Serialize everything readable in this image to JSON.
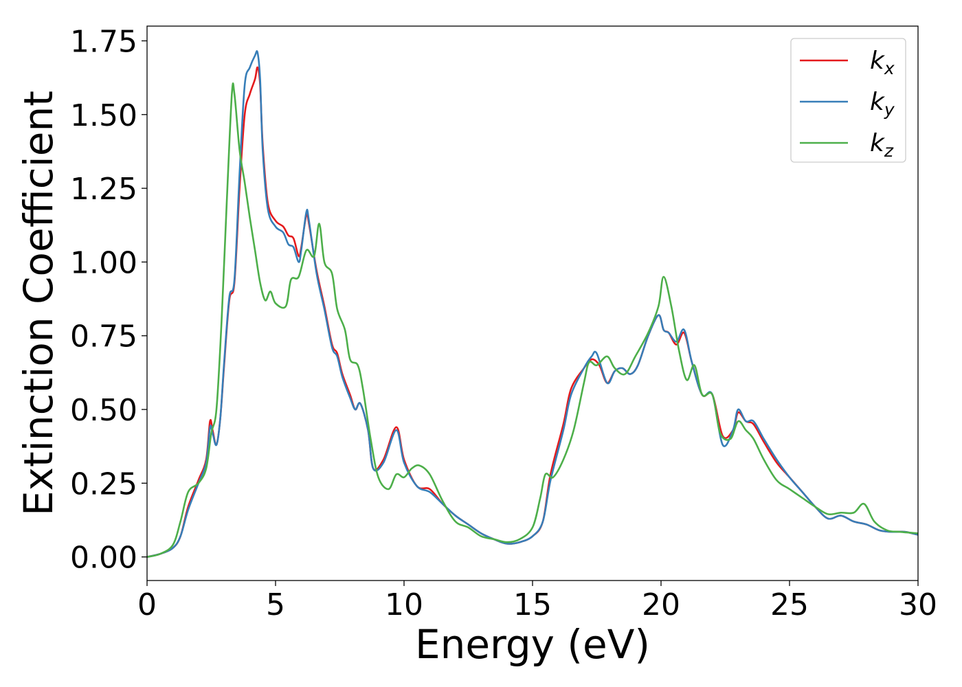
{
  "chart_data": {
    "type": "line",
    "xlabel": "Energy (eV)",
    "ylabel": "Extinction Coefficient",
    "xlim": [
      0,
      30
    ],
    "ylim": [
      -0.08,
      1.8
    ],
    "x_ticks": [
      "0",
      "5",
      "10",
      "15",
      "20",
      "25",
      "30"
    ],
    "y_ticks": [
      "0.00",
      "0.25",
      "0.50",
      "0.75",
      "1.00",
      "1.25",
      "1.50",
      "1.75"
    ],
    "grid": false,
    "legend_position": "top-right",
    "series": [
      {
        "name": "k",
        "subscript": "x",
        "color": "#e41a1c",
        "points": [
          [
            0,
            0.0
          ],
          [
            0.5,
            0.01
          ],
          [
            1.0,
            0.03
          ],
          [
            1.3,
            0.07
          ],
          [
            1.6,
            0.17
          ],
          [
            2.0,
            0.26
          ],
          [
            2.3,
            0.33
          ],
          [
            2.45,
            0.46
          ],
          [
            2.55,
            0.43
          ],
          [
            2.7,
            0.38
          ],
          [
            2.85,
            0.47
          ],
          [
            3.0,
            0.65
          ],
          [
            3.2,
            0.87
          ],
          [
            3.4,
            0.93
          ],
          [
            3.6,
            1.25
          ],
          [
            3.8,
            1.5
          ],
          [
            4.0,
            1.57
          ],
          [
            4.2,
            1.62
          ],
          [
            4.3,
            1.66
          ],
          [
            4.4,
            1.6
          ],
          [
            4.5,
            1.4
          ],
          [
            4.7,
            1.2
          ],
          [
            5.0,
            1.14
          ],
          [
            5.3,
            1.12
          ],
          [
            5.5,
            1.09
          ],
          [
            5.7,
            1.08
          ],
          [
            5.9,
            1.02
          ],
          [
            6.0,
            1.05
          ],
          [
            6.2,
            1.16
          ],
          [
            6.3,
            1.13
          ],
          [
            6.6,
            0.97
          ],
          [
            6.9,
            0.85
          ],
          [
            7.2,
            0.72
          ],
          [
            7.4,
            0.69
          ],
          [
            7.6,
            0.62
          ],
          [
            7.9,
            0.55
          ],
          [
            8.1,
            0.5
          ],
          [
            8.3,
            0.52
          ],
          [
            8.6,
            0.43
          ],
          [
            8.8,
            0.3
          ],
          [
            9.2,
            0.33
          ],
          [
            9.7,
            0.44
          ],
          [
            10.0,
            0.33
          ],
          [
            10.5,
            0.24
          ],
          [
            11.0,
            0.23
          ],
          [
            11.5,
            0.18
          ],
          [
            12.0,
            0.14
          ],
          [
            12.5,
            0.11
          ],
          [
            13.0,
            0.08
          ],
          [
            13.5,
            0.06
          ],
          [
            14.0,
            0.045
          ],
          [
            14.5,
            0.05
          ],
          [
            15.0,
            0.07
          ],
          [
            15.4,
            0.12
          ],
          [
            15.7,
            0.28
          ],
          [
            16.2,
            0.45
          ],
          [
            16.5,
            0.57
          ],
          [
            17.0,
            0.64
          ],
          [
            17.3,
            0.67
          ],
          [
            17.6,
            0.65
          ],
          [
            17.9,
            0.59
          ],
          [
            18.2,
            0.63
          ],
          [
            18.5,
            0.64
          ],
          [
            18.8,
            0.62
          ],
          [
            19.1,
            0.65
          ],
          [
            19.5,
            0.75
          ],
          [
            19.9,
            0.82
          ],
          [
            20.1,
            0.77
          ],
          [
            20.3,
            0.76
          ],
          [
            20.6,
            0.72
          ],
          [
            20.9,
            0.76
          ],
          [
            21.2,
            0.66
          ],
          [
            21.6,
            0.55
          ],
          [
            22.0,
            0.55
          ],
          [
            22.4,
            0.41
          ],
          [
            22.8,
            0.43
          ],
          [
            23.0,
            0.49
          ],
          [
            23.3,
            0.46
          ],
          [
            23.6,
            0.45
          ],
          [
            24.0,
            0.39
          ],
          [
            24.5,
            0.32
          ],
          [
            25.0,
            0.27
          ],
          [
            25.5,
            0.22
          ],
          [
            26.0,
            0.17
          ],
          [
            26.5,
            0.13
          ],
          [
            27.0,
            0.14
          ],
          [
            27.5,
            0.12
          ],
          [
            28.0,
            0.11
          ],
          [
            28.5,
            0.09
          ],
          [
            29.0,
            0.085
          ],
          [
            29.5,
            0.085
          ],
          [
            30.0,
            0.075
          ]
        ]
      },
      {
        "name": "k",
        "subscript": "y",
        "color": "#377eb8",
        "points": [
          [
            0,
            0.0
          ],
          [
            0.5,
            0.01
          ],
          [
            1.0,
            0.03
          ],
          [
            1.3,
            0.07
          ],
          [
            1.6,
            0.16
          ],
          [
            2.0,
            0.25
          ],
          [
            2.3,
            0.32
          ],
          [
            2.45,
            0.44
          ],
          [
            2.55,
            0.42
          ],
          [
            2.7,
            0.38
          ],
          [
            2.85,
            0.47
          ],
          [
            3.0,
            0.66
          ],
          [
            3.2,
            0.88
          ],
          [
            3.4,
            0.94
          ],
          [
            3.6,
            1.3
          ],
          [
            3.8,
            1.6
          ],
          [
            4.0,
            1.66
          ],
          [
            4.2,
            1.7
          ],
          [
            4.3,
            1.71
          ],
          [
            4.4,
            1.62
          ],
          [
            4.5,
            1.38
          ],
          [
            4.7,
            1.18
          ],
          [
            5.0,
            1.12
          ],
          [
            5.3,
            1.1
          ],
          [
            5.5,
            1.06
          ],
          [
            5.7,
            1.05
          ],
          [
            5.9,
            1.0
          ],
          [
            6.0,
            1.04
          ],
          [
            6.2,
            1.17
          ],
          [
            6.3,
            1.14
          ],
          [
            6.6,
            0.96
          ],
          [
            6.9,
            0.84
          ],
          [
            7.2,
            0.71
          ],
          [
            7.4,
            0.68
          ],
          [
            7.6,
            0.61
          ],
          [
            7.9,
            0.54
          ],
          [
            8.1,
            0.5
          ],
          [
            8.3,
            0.52
          ],
          [
            8.6,
            0.43
          ],
          [
            8.8,
            0.3
          ],
          [
            9.2,
            0.32
          ],
          [
            9.7,
            0.43
          ],
          [
            10.0,
            0.32
          ],
          [
            10.5,
            0.24
          ],
          [
            11.0,
            0.22
          ],
          [
            11.5,
            0.18
          ],
          [
            12.0,
            0.14
          ],
          [
            12.5,
            0.11
          ],
          [
            13.0,
            0.08
          ],
          [
            13.5,
            0.06
          ],
          [
            14.0,
            0.045
          ],
          [
            14.5,
            0.05
          ],
          [
            15.0,
            0.07
          ],
          [
            15.4,
            0.12
          ],
          [
            15.7,
            0.26
          ],
          [
            16.2,
            0.43
          ],
          [
            16.5,
            0.55
          ],
          [
            17.0,
            0.64
          ],
          [
            17.3,
            0.68
          ],
          [
            17.5,
            0.69
          ],
          [
            17.9,
            0.59
          ],
          [
            18.2,
            0.63
          ],
          [
            18.5,
            0.64
          ],
          [
            18.8,
            0.62
          ],
          [
            19.1,
            0.65
          ],
          [
            19.5,
            0.75
          ],
          [
            19.9,
            0.82
          ],
          [
            20.1,
            0.77
          ],
          [
            20.3,
            0.76
          ],
          [
            20.6,
            0.73
          ],
          [
            20.9,
            0.77
          ],
          [
            21.2,
            0.66
          ],
          [
            21.6,
            0.55
          ],
          [
            22.0,
            0.55
          ],
          [
            22.4,
            0.38
          ],
          [
            22.8,
            0.43
          ],
          [
            23.0,
            0.5
          ],
          [
            23.3,
            0.46
          ],
          [
            23.6,
            0.46
          ],
          [
            24.0,
            0.4
          ],
          [
            24.5,
            0.33
          ],
          [
            25.0,
            0.27
          ],
          [
            25.5,
            0.22
          ],
          [
            26.0,
            0.17
          ],
          [
            26.5,
            0.13
          ],
          [
            27.0,
            0.14
          ],
          [
            27.5,
            0.12
          ],
          [
            28.0,
            0.11
          ],
          [
            28.5,
            0.09
          ],
          [
            29.0,
            0.085
          ],
          [
            29.5,
            0.085
          ],
          [
            30.0,
            0.075
          ]
        ]
      },
      {
        "name": "k",
        "subscript": "z",
        "color": "#4daf4a",
        "points": [
          [
            0,
            0.0
          ],
          [
            0.5,
            0.01
          ],
          [
            1.0,
            0.04
          ],
          [
            1.3,
            0.12
          ],
          [
            1.6,
            0.22
          ],
          [
            2.0,
            0.25
          ],
          [
            2.3,
            0.3
          ],
          [
            2.5,
            0.42
          ],
          [
            2.7,
            0.5
          ],
          [
            2.9,
            0.8
          ],
          [
            3.1,
            1.2
          ],
          [
            3.3,
            1.57
          ],
          [
            3.4,
            1.57
          ],
          [
            3.6,
            1.38
          ],
          [
            3.8,
            1.27
          ],
          [
            4.0,
            1.15
          ],
          [
            4.2,
            1.04
          ],
          [
            4.4,
            0.93
          ],
          [
            4.6,
            0.87
          ],
          [
            4.8,
            0.9
          ],
          [
            5.0,
            0.86
          ],
          [
            5.4,
            0.85
          ],
          [
            5.6,
            0.94
          ],
          [
            5.9,
            0.95
          ],
          [
            6.2,
            1.04
          ],
          [
            6.5,
            1.02
          ],
          [
            6.7,
            1.13
          ],
          [
            6.9,
            1.0
          ],
          [
            7.2,
            0.96
          ],
          [
            7.4,
            0.84
          ],
          [
            7.7,
            0.77
          ],
          [
            7.9,
            0.67
          ],
          [
            8.2,
            0.65
          ],
          [
            8.4,
            0.57
          ],
          [
            8.7,
            0.4
          ],
          [
            9.0,
            0.27
          ],
          [
            9.4,
            0.23
          ],
          [
            9.7,
            0.28
          ],
          [
            10.0,
            0.27
          ],
          [
            10.3,
            0.3
          ],
          [
            10.6,
            0.31
          ],
          [
            11.0,
            0.28
          ],
          [
            11.5,
            0.19
          ],
          [
            12.0,
            0.12
          ],
          [
            12.5,
            0.1
          ],
          [
            13.0,
            0.07
          ],
          [
            13.5,
            0.06
          ],
          [
            14.0,
            0.05
          ],
          [
            14.5,
            0.06
          ],
          [
            15.0,
            0.1
          ],
          [
            15.3,
            0.2
          ],
          [
            15.5,
            0.28
          ],
          [
            15.8,
            0.27
          ],
          [
            16.2,
            0.33
          ],
          [
            16.6,
            0.43
          ],
          [
            17.0,
            0.59
          ],
          [
            17.2,
            0.66
          ],
          [
            17.5,
            0.65
          ],
          [
            17.9,
            0.68
          ],
          [
            18.2,
            0.64
          ],
          [
            18.6,
            0.62
          ],
          [
            19.0,
            0.68
          ],
          [
            19.5,
            0.76
          ],
          [
            19.9,
            0.85
          ],
          [
            20.1,
            0.95
          ],
          [
            20.4,
            0.85
          ],
          [
            20.7,
            0.7
          ],
          [
            21.0,
            0.6
          ],
          [
            21.3,
            0.65
          ],
          [
            21.6,
            0.55
          ],
          [
            22.0,
            0.55
          ],
          [
            22.3,
            0.42
          ],
          [
            22.7,
            0.4
          ],
          [
            23.0,
            0.46
          ],
          [
            23.3,
            0.43
          ],
          [
            23.6,
            0.4
          ],
          [
            24.0,
            0.33
          ],
          [
            24.5,
            0.26
          ],
          [
            25.0,
            0.23
          ],
          [
            25.5,
            0.2
          ],
          [
            26.0,
            0.17
          ],
          [
            26.5,
            0.145
          ],
          [
            27.0,
            0.15
          ],
          [
            27.5,
            0.15
          ],
          [
            27.9,
            0.18
          ],
          [
            28.3,
            0.12
          ],
          [
            28.8,
            0.09
          ],
          [
            29.3,
            0.085
          ],
          [
            30.0,
            0.08
          ]
        ]
      }
    ]
  }
}
